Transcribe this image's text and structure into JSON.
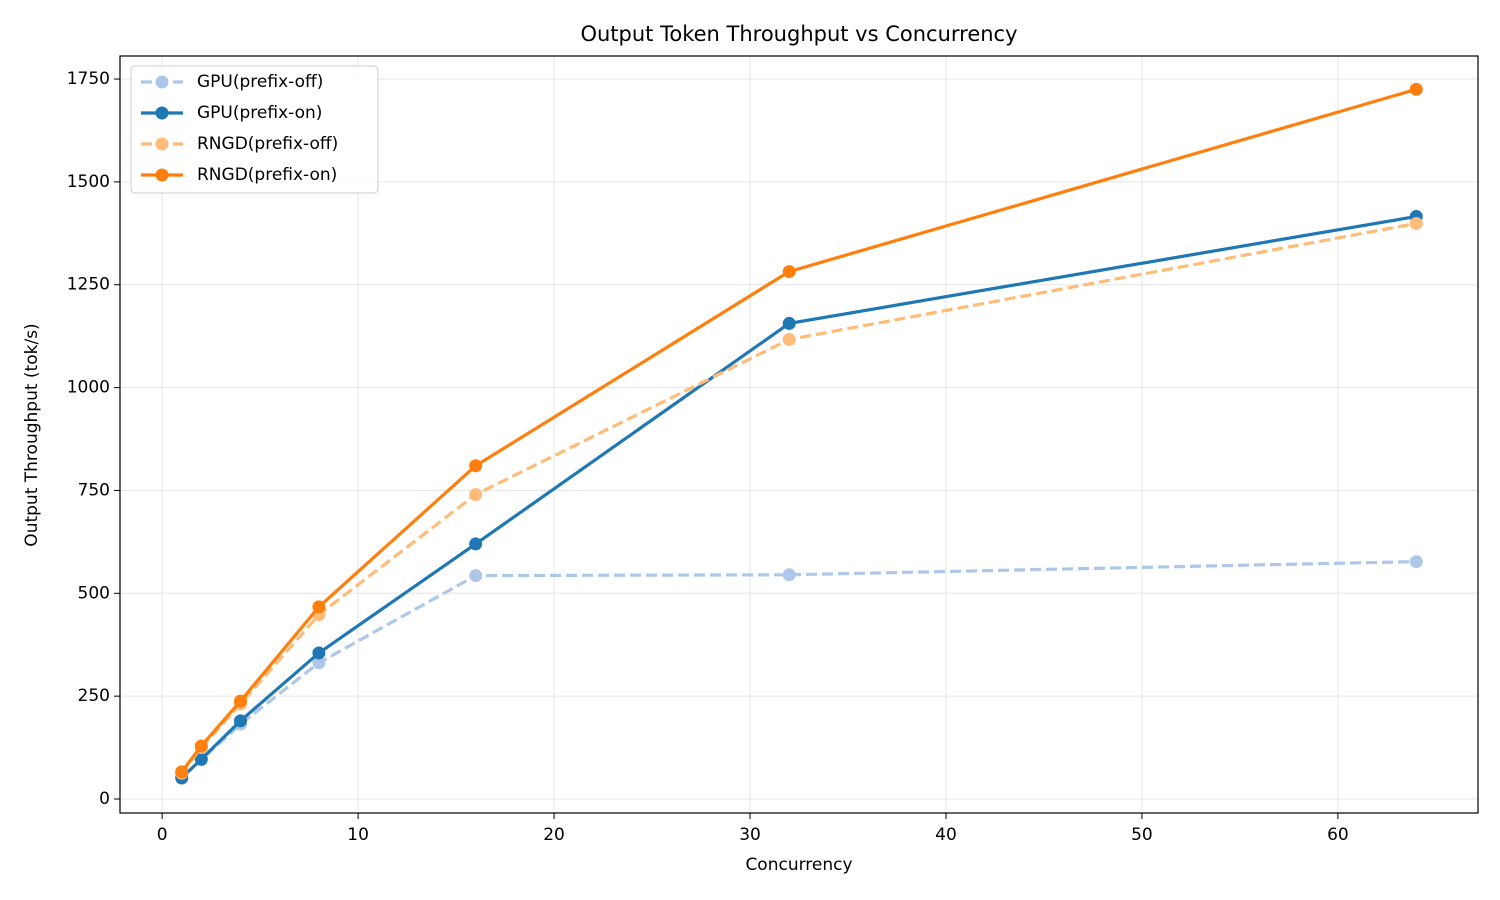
{
  "chart_data": {
    "type": "line",
    "title": "Output Token Throughput vs Concurrency",
    "xlabel": "Concurrency",
    "ylabel": "Output Throughput (tok/s)",
    "x": [
      1,
      2,
      4,
      8,
      16,
      32,
      64
    ],
    "series": [
      {
        "name": "GPU(prefix-off)",
        "color": "#aec7e8",
        "linestyle": "dashed",
        "values": [
          55,
          95,
          182,
          331,
          543,
          545,
          577
        ]
      },
      {
        "name": "GPU(prefix-on)",
        "color": "#1f77b4",
        "linestyle": "solid",
        "values": [
          51,
          97,
          190,
          355,
          620,
          1156,
          1416
        ]
      },
      {
        "name": "RNGD(prefix-off)",
        "color": "#ffbb78",
        "linestyle": "dashed",
        "values": [
          63,
          125,
          231,
          448,
          740,
          1117,
          1399
        ]
      },
      {
        "name": "RNGD(prefix-on)",
        "color": "#ff7f0e",
        "linestyle": "solid",
        "values": [
          66,
          129,
          238,
          467,
          810,
          1282,
          1725
        ]
      }
    ],
    "xlim": [
      -2.15,
      67.15
    ],
    "ylim": [
      -34,
      1806
    ],
    "xticks": [
      0,
      10,
      20,
      30,
      40,
      50,
      60
    ],
    "yticks": [
      0,
      250,
      500,
      750,
      1000,
      1250,
      1500,
      1750
    ],
    "grid": true,
    "legend": "upper left"
  }
}
